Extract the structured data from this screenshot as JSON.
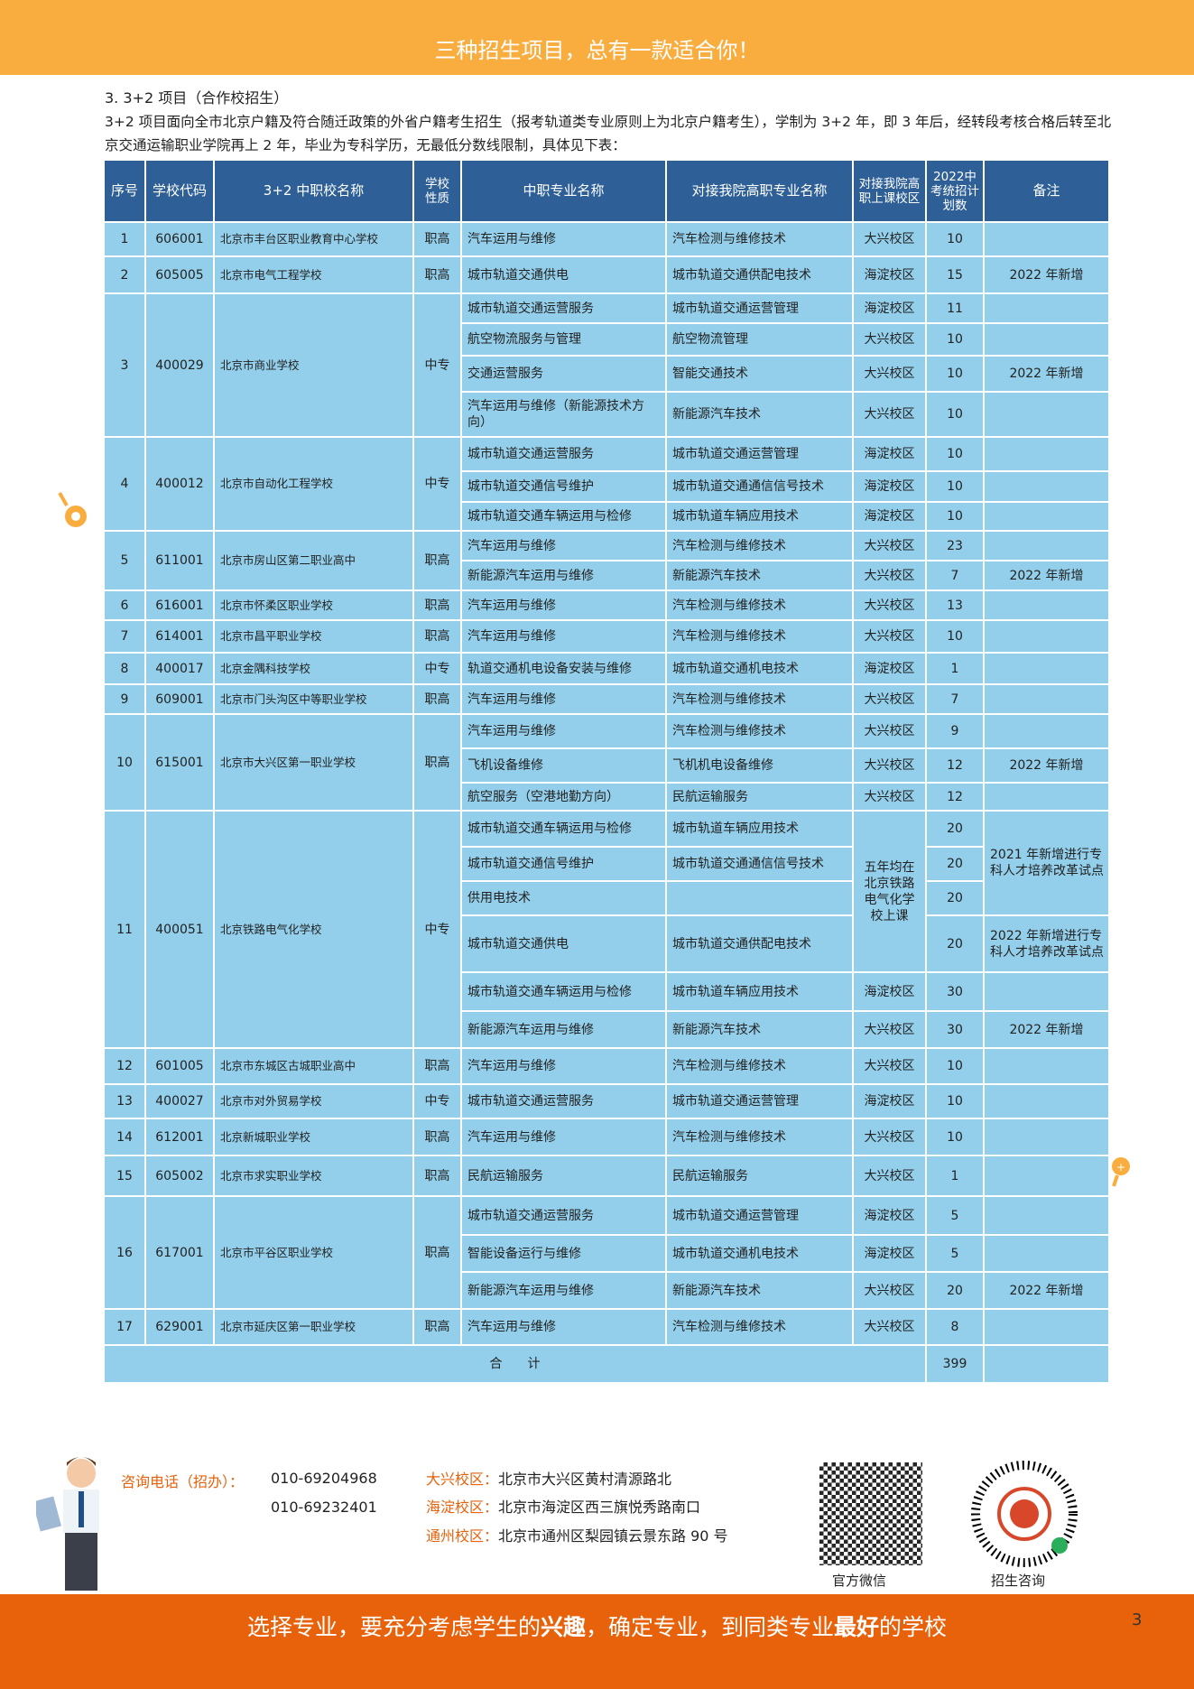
{
  "banner": "三种招生项目，总有一款适合你！",
  "section_title": "3. 3+2 项目（合作校招生）",
  "intro": "3+2 项目面向全市北京户籍及符合随迁政策的外省户籍考生招生（报考轨道类专业原则上为北京户籍考生），学制为 3+2 年，即 3 年后，经转段考核合格后转至北京交通运输职业学院再上 2 年，毕业为专科学历，无最低分数线限制，具体见下表：",
  "table": {
    "headers": [
      "序号",
      "学校代码",
      "3+2 中职校名称",
      "学校性质",
      "中职专业名称",
      "对接我院高职专业名称",
      "对接我院高职上课校区",
      "2022中考统招计划数",
      "备注"
    ],
    "schools": [
      {
        "no": "1",
        "code": "606001",
        "name": "北京市丰台区职业教育中心学校",
        "type": "职高",
        "majors": [
          {
            "major": "汽车运用与维修",
            "target": "汽车检测与维修技术",
            "campus": "大兴校区",
            "plan": "10",
            "remark": ""
          }
        ]
      },
      {
        "no": "2",
        "code": "605005",
        "name": "北京市电气工程学校",
        "type": "职高",
        "majors": [
          {
            "major": "城市轨道交通供电",
            "target": "城市轨道交通供配电技术",
            "campus": "海淀校区",
            "plan": "15",
            "remark": "2022 年新增"
          }
        ]
      },
      {
        "no": "3",
        "code": "400029",
        "name": "北京市商业学校",
        "type": "中专",
        "majors": [
          {
            "major": "城市轨道交通运营服务",
            "target": "城市轨道交通运营管理",
            "campus": "海淀校区",
            "plan": "11",
            "remark": ""
          },
          {
            "major": "航空物流服务与管理",
            "target": "航空物流管理",
            "campus": "大兴校区",
            "plan": "10",
            "remark": ""
          },
          {
            "major": "交通运营服务",
            "target": "智能交通技术",
            "campus": "大兴校区",
            "plan": "10",
            "remark": "2022 年新增"
          },
          {
            "major": "汽车运用与维修（新能源技术方向）",
            "target": "新能源汽车技术",
            "campus": "大兴校区",
            "plan": "10",
            "remark": ""
          }
        ]
      },
      {
        "no": "4",
        "code": "400012",
        "name": "北京市自动化工程学校",
        "type": "中专",
        "majors": [
          {
            "major": "城市轨道交通运营服务",
            "target": "城市轨道交通运营管理",
            "campus": "海淀校区",
            "plan": "10",
            "remark": ""
          },
          {
            "major": "城市轨道交通信号维护",
            "target": "城市轨道交通通信信号技术",
            "campus": "海淀校区",
            "plan": "10",
            "remark": ""
          },
          {
            "major": "城市轨道交通车辆运用与检修",
            "target": "城市轨道车辆应用技术",
            "campus": "海淀校区",
            "plan": "10",
            "remark": ""
          }
        ]
      },
      {
        "no": "5",
        "code": "611001",
        "name": "北京市房山区第二职业高中",
        "type": "职高",
        "majors": [
          {
            "major": "汽车运用与维修",
            "target": "汽车检测与维修技术",
            "campus": "大兴校区",
            "plan": "23",
            "remark": ""
          },
          {
            "major": "新能源汽车运用与维修",
            "target": "新能源汽车技术",
            "campus": "大兴校区",
            "plan": "7",
            "remark": "2022 年新增"
          }
        ]
      },
      {
        "no": "6",
        "code": "616001",
        "name": "北京市怀柔区职业学校",
        "type": "职高",
        "majors": [
          {
            "major": "汽车运用与维修",
            "target": "汽车检测与维修技术",
            "campus": "大兴校区",
            "plan": "13",
            "remark": ""
          }
        ]
      },
      {
        "no": "7",
        "code": "614001",
        "name": "北京市昌平职业学校",
        "type": "职高",
        "majors": [
          {
            "major": "汽车运用与维修",
            "target": "汽车检测与维修技术",
            "campus": "大兴校区",
            "plan": "10",
            "remark": ""
          }
        ]
      },
      {
        "no": "8",
        "code": "400017",
        "name": "北京金隅科技学校",
        "type": "中专",
        "majors": [
          {
            "major": "轨道交通机电设备安装与维修",
            "target": "城市轨道交通机电技术",
            "campus": "海淀校区",
            "plan": "1",
            "remark": ""
          }
        ]
      },
      {
        "no": "9",
        "code": "609001",
        "name": "北京市门头沟区中等职业学校",
        "type": "职高",
        "majors": [
          {
            "major": "汽车运用与维修",
            "target": "汽车检测与维修技术",
            "campus": "大兴校区",
            "plan": "7",
            "remark": ""
          }
        ]
      },
      {
        "no": "10",
        "code": "615001",
        "name": "北京市大兴区第一职业学校",
        "type": "职高",
        "majors": [
          {
            "major": "汽车运用与维修",
            "target": "汽车检测与维修技术",
            "campus": "大兴校区",
            "plan": "9",
            "remark": ""
          },
          {
            "major": "飞机设备维修",
            "target": "飞机机电设备维修",
            "campus": "大兴校区",
            "plan": "12",
            "remark": "2022 年新增"
          },
          {
            "major": "航空服务（空港地勤方向）",
            "target": "民航运输服务",
            "campus": "大兴校区",
            "plan": "12",
            "remark": ""
          }
        ]
      },
      {
        "no": "11",
        "code": "400051",
        "name": "北京铁路电气化学校",
        "type": "中专",
        "majors": [
          {
            "major": "城市轨道交通车辆运用与检修",
            "target": "城市轨道车辆应用技术",
            "campus": "五年均在北京铁路电气化学校上课",
            "plan": "20",
            "remark": "2021 年新增进行专科人才培养改革试点"
          },
          {
            "major": "城市轨道交通信号维护",
            "target": "城市轨道交通通信信号技术",
            "campus": null,
            "plan": "20",
            "remark": null
          },
          {
            "major": "供用电技术",
            "target": "",
            "campus": null,
            "plan": "20",
            "remark": null
          },
          {
            "major": "城市轨道交通供电",
            "target": "城市轨道交通供配电技术",
            "campus": null,
            "plan": "20",
            "remark": "2022 年新增进行专科人才培养改革试点"
          },
          {
            "major": "城市轨道交通车辆运用与检修",
            "target": "城市轨道车辆应用技术",
            "campus": "海淀校区",
            "plan": "30",
            "remark": ""
          },
          {
            "major": "新能源汽车运用与维修",
            "target": "新能源汽车技术",
            "campus": "大兴校区",
            "plan": "30",
            "remark": "2022 年新增"
          }
        ]
      },
      {
        "no": "12",
        "code": "601005",
        "name": "北京市东城区古城职业高中",
        "type": "职高",
        "majors": [
          {
            "major": "汽车运用与维修",
            "target": "汽车检测与维修技术",
            "campus": "大兴校区",
            "plan": "10",
            "remark": ""
          }
        ]
      },
      {
        "no": "13",
        "code": "400027",
        "name": "北京市对外贸易学校",
        "type": "中专",
        "majors": [
          {
            "major": "城市轨道交通运营服务",
            "target": "城市轨道交通运营管理",
            "campus": "海淀校区",
            "plan": "10",
            "remark": ""
          }
        ]
      },
      {
        "no": "14",
        "code": "612001",
        "name": "北京新城职业学校",
        "type": "职高",
        "majors": [
          {
            "major": "汽车运用与维修",
            "target": "汽车检测与维修技术",
            "campus": "大兴校区",
            "plan": "10",
            "remark": ""
          }
        ]
      },
      {
        "no": "15",
        "code": "605002",
        "name": "北京市求实职业学校",
        "type": "职高",
        "majors": [
          {
            "major": "民航运输服务",
            "target": "民航运输服务",
            "campus": "大兴校区",
            "plan": "1",
            "remark": ""
          }
        ]
      },
      {
        "no": "16",
        "code": "617001",
        "name": "北京市平谷区职业学校",
        "type": "职高",
        "majors": [
          {
            "major": "城市轨道交通运营服务",
            "target": "城市轨道交通运营管理",
            "campus": "海淀校区",
            "plan": "5",
            "remark": ""
          },
          {
            "major": "智能设备运行与维修",
            "target": "城市轨道交通机电技术",
            "campus": "海淀校区",
            "plan": "5",
            "remark": ""
          },
          {
            "major": "新能源汽车运用与维修",
            "target": "新能源汽车技术",
            "campus": "大兴校区",
            "plan": "20",
            "remark": "2022 年新增"
          }
        ]
      },
      {
        "no": "17",
        "code": "629001",
        "name": "北京市延庆区第一职业学校",
        "type": "职高",
        "majors": [
          {
            "major": "汽车运用与维修",
            "target": "汽车检测与维修技术",
            "campus": "大兴校区",
            "plan": "8",
            "remark": ""
          }
        ]
      }
    ],
    "total_label": "合　　计",
    "total_value": "399"
  },
  "contact": {
    "phone_label": "咨询电话（招办）：",
    "phones": [
      "010-69204968",
      "010-69232401"
    ],
    "campuses": [
      {
        "label": "大兴校区：",
        "address": "北京市大兴区黄村清源路北"
      },
      {
        "label": "海淀校区：",
        "address": "北京市海淀区西三旗悦秀路南口"
      },
      {
        "label": "通州校区：",
        "address": "北京市通州区梨园镇云景东路 90 号"
      }
    ],
    "qr_wechat_label": "官方微信",
    "qr_consult_label": "招生咨询"
  },
  "slogan": {
    "p1": "选择专业，要充分考虑学生的",
    "b1": "兴趣",
    "p2": "，确定专业，到同类专业",
    "b2": "最好",
    "p3": "的学校"
  },
  "page_number": "3",
  "colors": {
    "banner": "#f9ad3e",
    "header": "#2e6097",
    "cell": "#93cfea",
    "footer": "#e8620c"
  }
}
